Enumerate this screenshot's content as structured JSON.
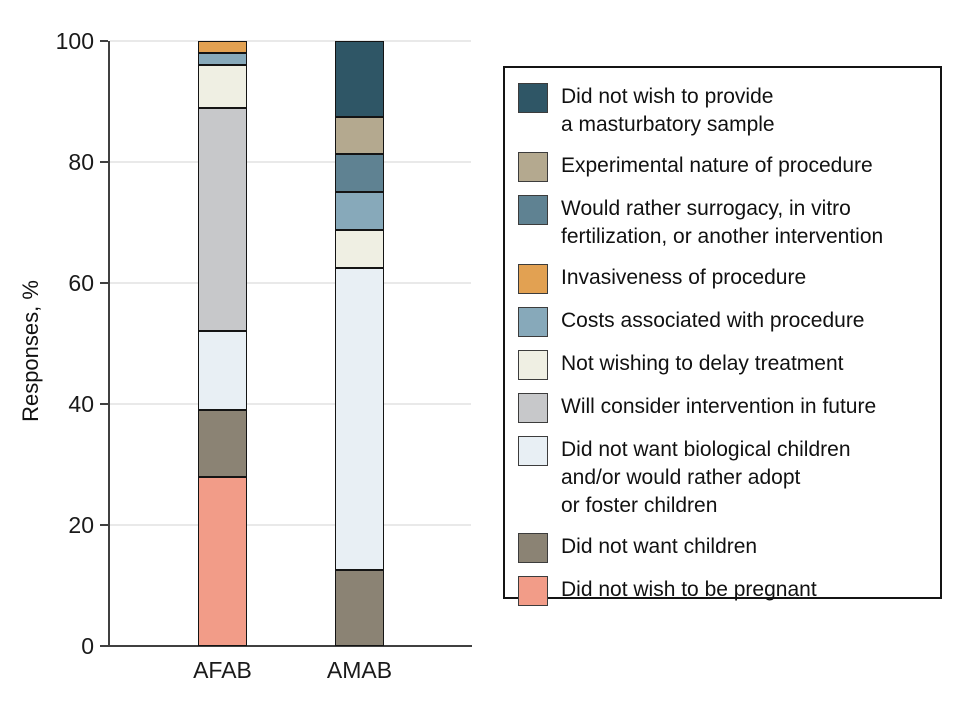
{
  "chart_data": {
    "type": "stacked-bar",
    "title": "",
    "ylabel": "Responses, %",
    "xlabel": "",
    "ylim": [
      0,
      100
    ],
    "yticks": [
      0,
      20,
      40,
      60,
      80,
      100
    ],
    "grid": "horizontal",
    "legend_position": "right",
    "categories": [
      "AFAB",
      "AMAB"
    ],
    "series": [
      {
        "name": "Did not wish to be pregnant",
        "color": "#f29c88",
        "values": [
          28,
          0
        ]
      },
      {
        "name": "Did not want children",
        "color": "#8b8374",
        "values": [
          11,
          12.5
        ]
      },
      {
        "name": "Did not want biological children and/or would rather adopt or foster children",
        "color": "#e8eff4",
        "values": [
          13,
          50
        ]
      },
      {
        "name": "Will consider intervention in future",
        "color": "#c7c8ca",
        "values": [
          37,
          0
        ]
      },
      {
        "name": "Not wishing to delay treatment",
        "color": "#efefe3",
        "values": [
          7,
          6.25
        ]
      },
      {
        "name": "Costs associated with procedure",
        "color": "#87a9ba",
        "values": [
          2,
          6.25
        ]
      },
      {
        "name": "Invasiveness of procedure",
        "color": "#e2a152",
        "values": [
          2,
          0
        ]
      },
      {
        "name": "Would rather surrogacy, in vitro fertilization, or another intervention",
        "color": "#5f8292",
        "values": [
          0,
          6.25
        ]
      },
      {
        "name": "Experimental nature of procedure",
        "color": "#b4a98f",
        "values": [
          0,
          6.25
        ]
      },
      {
        "name": "Did not wish to provide a masturbatory sample",
        "color": "#2f5666",
        "values": [
          0,
          12.5
        ]
      }
    ],
    "legend": [
      {
        "color": "#2f5666",
        "lines": [
          "Did not wish to provide",
          "a masturbatory sample"
        ]
      },
      {
        "color": "#b4a98f",
        "lines": [
          "Experimental nature of procedure"
        ]
      },
      {
        "color": "#5f8292",
        "lines": [
          "Would rather surrogacy, in vitro",
          "fertilization, or another intervention"
        ]
      },
      {
        "color": "#e2a152",
        "lines": [
          "Invasiveness of procedure"
        ]
      },
      {
        "color": "#87a9ba",
        "lines": [
          "Costs associated with procedure"
        ]
      },
      {
        "color": "#efefe3",
        "lines": [
          "Not wishing to delay treatment"
        ]
      },
      {
        "color": "#c7c8ca",
        "lines": [
          "Will consider intervention in future"
        ]
      },
      {
        "color": "#e8eff4",
        "lines": [
          "Did not want biological children",
          "and/or would rather adopt",
          "or foster children"
        ]
      },
      {
        "color": "#8b8374",
        "lines": [
          "Did not want children"
        ]
      },
      {
        "color": "#f29c88",
        "lines": [
          "Did not wish to be pregnant"
        ]
      }
    ]
  }
}
